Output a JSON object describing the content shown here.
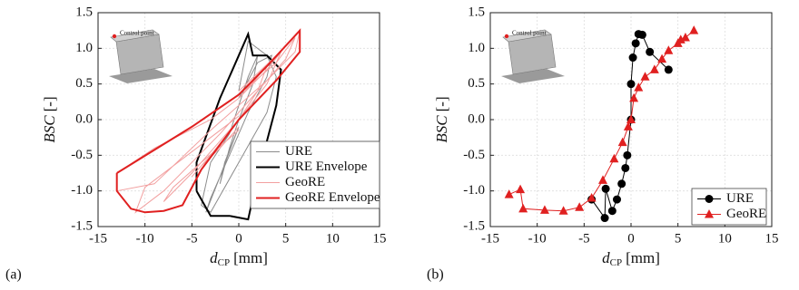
{
  "chart_data": [
    {
      "type": "line",
      "panel_label": "(a)",
      "annotation": "Control point",
      "x_label": {
        "symbol": "d",
        "subscript": "CP",
        "unit": "[mm]"
      },
      "y_label": {
        "symbol": "BSC",
        "unit": "[-]"
      },
      "xlim": [
        -15,
        15
      ],
      "xticks": [
        -15,
        -10,
        -5,
        0,
        5,
        10,
        15
      ],
      "ylim": [
        -1.5,
        1.5
      ],
      "yticks": [
        {
          "value": -1.5,
          "label": "-1.5"
        },
        {
          "value": -1,
          "label": "-1.0"
        },
        -0.5,
        {
          "value": 0,
          "label": "0.0"
        },
        0.5,
        {
          "value": 1,
          "label": "1.0"
        },
        1.5
      ],
      "grid": true,
      "legend": "lower right",
      "series": [
        {
          "name": "URE",
          "color": "#8c8c8c",
          "x": [
            0,
            1,
            2,
            1.5,
            0,
            -1,
            -2,
            -1.5,
            0,
            null,
            0,
            2,
            3.5,
            3,
            1,
            -1,
            -3,
            -3.5,
            -2,
            0,
            null,
            0,
            1,
            3,
            4,
            3,
            0,
            -3,
            -4,
            -3,
            -1,
            0
          ],
          "y": [
            0.2,
            0.6,
            0.9,
            0.5,
            0,
            -0.4,
            -0.9,
            -0.6,
            -0.1,
            null,
            0.3,
            0.8,
            0.9,
            0.6,
            0.1,
            -0.5,
            -1.1,
            -1.3,
            -0.8,
            -0.1,
            null,
            0.4,
            1.1,
            0.9,
            0.6,
            0.1,
            -0.6,
            -1.3,
            -1.2,
            -0.6,
            -0.2,
            0.2
          ]
        },
        {
          "name": "URE Envelope",
          "color": "#000000",
          "x": [
            -4.5,
            -4.5,
            -2,
            0,
            1,
            1.5,
            3,
            4.5,
            4,
            2,
            1,
            -1,
            -3,
            -4.5
          ],
          "y": [
            -1.0,
            -0.6,
            0.3,
            0.9,
            1.2,
            0.9,
            0.9,
            0.7,
            0.2,
            -0.8,
            -1.4,
            -1.35,
            -1.35,
            -1.0
          ]
        },
        {
          "name": "GeoRE",
          "color": "#f2a0a0",
          "x": [
            0,
            2,
            3,
            2,
            0,
            -3,
            -5,
            -4,
            -2,
            0,
            null,
            0,
            3,
            4.5,
            3,
            0,
            -5,
            -8,
            -7,
            -4,
            0,
            null,
            0,
            4,
            6,
            5,
            2,
            -2,
            -8,
            -11,
            -10,
            -6,
            0,
            null,
            0,
            4,
            6.5,
            6,
            3,
            -3,
            -9,
            -13,
            -13,
            -9,
            -3,
            0
          ],
          "y": [
            0.3,
            0.6,
            0.75,
            0.4,
            0,
            -0.5,
            -0.8,
            -0.65,
            -0.4,
            -0.1,
            null,
            0.3,
            0.7,
            0.95,
            0.5,
            0,
            -0.75,
            -1.15,
            -0.95,
            -0.6,
            -0.15,
            null,
            0.35,
            0.8,
            1.15,
            0.85,
            0.4,
            -0.2,
            -1.0,
            -1.3,
            -0.95,
            -0.55,
            0.05,
            null,
            0.4,
            0.9,
            1.25,
            0.95,
            0.55,
            -0.15,
            -0.9,
            -1.0,
            -0.75,
            -0.4,
            0,
            0.3
          ]
        },
        {
          "name": "GeoRE Envelope",
          "color": "#e02020",
          "x": [
            -13,
            -5,
            0,
            3,
            6.5,
            6.5,
            4,
            0,
            -4,
            -6,
            -8,
            -10,
            -11.5,
            -13,
            -13
          ],
          "y": [
            -0.75,
            -0.1,
            0.35,
            0.75,
            1.25,
            0.95,
            0.55,
            0,
            -0.7,
            -1.2,
            -1.28,
            -1.3,
            -1.25,
            -1.0,
            -0.75
          ]
        }
      ]
    },
    {
      "type": "line",
      "panel_label": "(b)",
      "annotation": "Control point",
      "x_label": {
        "symbol": "d",
        "subscript": "CP",
        "unit": "[mm]"
      },
      "y_label": {
        "symbol": "BSC",
        "unit": "[-]"
      },
      "xlim": [
        -15,
        15
      ],
      "xticks": [
        -15,
        -10,
        -5,
        0,
        5,
        10,
        15
      ],
      "ylim": [
        -1.5,
        1.5
      ],
      "yticks": [
        {
          "value": -1.5,
          "label": "-1.5"
        },
        {
          "value": -1,
          "label": "-1.0"
        },
        -0.5,
        {
          "value": 0,
          "label": "0.0"
        },
        0.5,
        {
          "value": 1,
          "label": "1.0"
        },
        1.5
      ],
      "grid": true,
      "legend": "lower right",
      "series": [
        {
          "name": "URE",
          "color": "#000000",
          "marker": "circle",
          "x": [
            -4.2,
            -2.8,
            -2.7,
            -2,
            -1.5,
            -1,
            -0.6,
            -0.4,
            0,
            0,
            0.2,
            0.5,
            0.8,
            1.2,
            2,
            4
          ],
          "y": [
            -1.12,
            -1.38,
            -0.97,
            -1.28,
            -1.12,
            -0.9,
            -0.68,
            -0.5,
            0,
            0.5,
            0.87,
            1.07,
            1.2,
            1.19,
            0.95,
            0.7
          ]
        },
        {
          "name": "GeoRE",
          "color": "#e02020",
          "marker": "triangle",
          "x": [
            -13,
            -11.8,
            -11.5,
            -9.2,
            -7.2,
            -5.5,
            -4.2,
            -3,
            -1.8,
            -0.9,
            -0.3,
            0,
            0.3,
            0.8,
            1.5,
            2.5,
            3.3,
            4,
            5,
            5.3,
            5.8,
            6.7
          ],
          "y": [
            -1.05,
            -0.98,
            -1.25,
            -1.27,
            -1.28,
            -1.23,
            -1.1,
            -0.85,
            -0.55,
            -0.32,
            -0.1,
            0,
            0.3,
            0.45,
            0.6,
            0.7,
            0.85,
            0.97,
            1.07,
            1.12,
            1.15,
            1.25
          ]
        }
      ]
    }
  ]
}
